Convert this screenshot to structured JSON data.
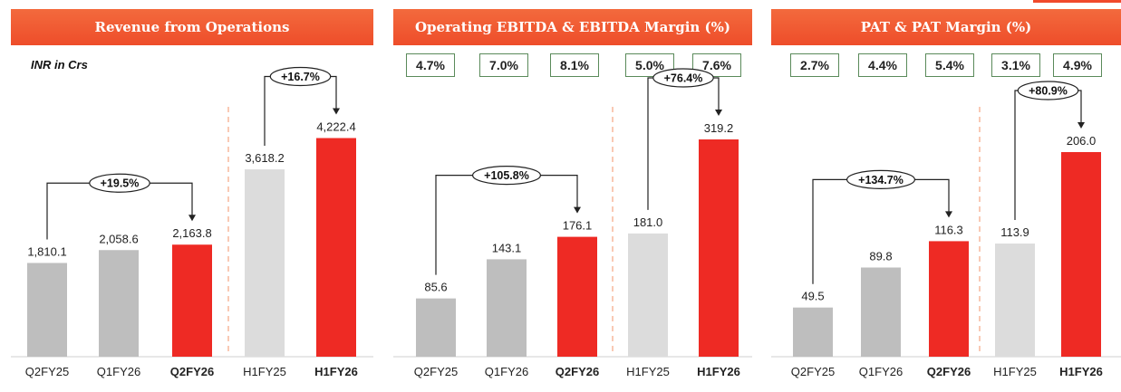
{
  "colors": {
    "grey": "#bebebe",
    "light_grey": "#dcdcdc",
    "red": "#ee2a24",
    "header": "#ee5530"
  },
  "chart_data": [
    {
      "type": "bar",
      "title": "Revenue from Operations",
      "unit_label": "INR in Crs",
      "categories": [
        "Q2FY25",
        "Q1FY26",
        "Q2FY26",
        "H1FY25",
        "H1FY26"
      ],
      "values": [
        1810.1,
        2058.6,
        2163.8,
        3618.2,
        4222.4
      ],
      "value_labels": [
        "1,810.1",
        "2,058.6",
        "2,163.8",
        "3,618.2",
        "4,222.4"
      ],
      "highlight": [
        "Q2FY26",
        "H1FY26"
      ],
      "margins": [],
      "growth": [
        {
          "from": 0,
          "to": 2,
          "label": "+19.5%"
        },
        {
          "from": 3,
          "to": 4,
          "label": "+16.7%"
        }
      ]
    },
    {
      "type": "bar",
      "title": "Operating EBITDA & EBITDA Margin (%)",
      "categories": [
        "Q2FY25",
        "Q1FY26",
        "Q2FY26",
        "H1FY25",
        "H1FY26"
      ],
      "values": [
        85.6,
        143.1,
        176.1,
        181.0,
        319.2
      ],
      "value_labels": [
        "85.6",
        "143.1",
        "176.1",
        "181.0",
        "319.2"
      ],
      "highlight": [
        "Q2FY26",
        "H1FY26"
      ],
      "margins": [
        "4.7%",
        "7.0%",
        "8.1%",
        "5.0%",
        "7.6%"
      ],
      "growth": [
        {
          "from": 0,
          "to": 2,
          "label": "+105.8%"
        },
        {
          "from": 3,
          "to": 4,
          "label": "+76.4%"
        }
      ]
    },
    {
      "type": "bar",
      "title": "PAT & PAT Margin (%)",
      "categories": [
        "Q2FY25",
        "Q1FY26",
        "Q2FY26",
        "H1FY25",
        "H1FY26"
      ],
      "values": [
        49.5,
        89.8,
        116.3,
        113.9,
        206.0
      ],
      "value_labels": [
        "49.5",
        "89.8",
        "116.3",
        "113.9",
        "206.0"
      ],
      "highlight": [
        "Q2FY26",
        "H1FY26"
      ],
      "margins": [
        "2.7%",
        "4.4%",
        "5.4%",
        "3.1%",
        "4.9%"
      ],
      "growth": [
        {
          "from": 0,
          "to": 2,
          "label": "+134.7%"
        },
        {
          "from": 3,
          "to": 4,
          "label": "+80.9%"
        }
      ]
    }
  ]
}
